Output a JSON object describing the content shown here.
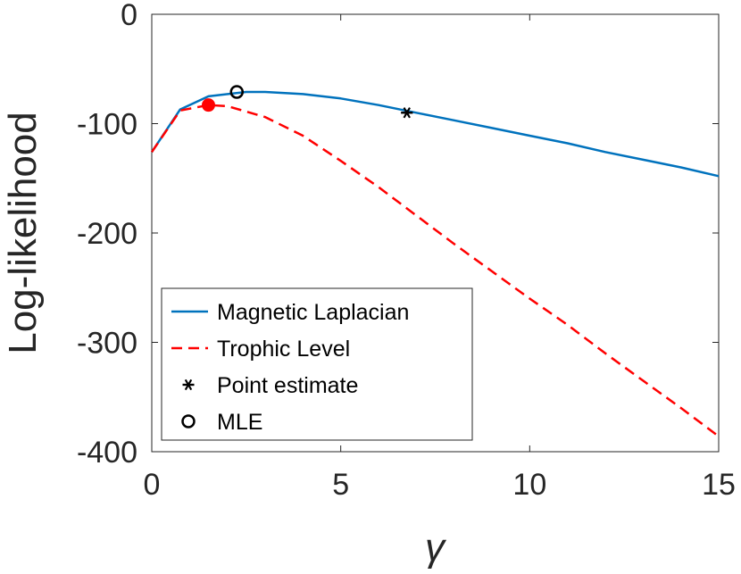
{
  "chart_data": {
    "type": "line",
    "xlabel": "γ",
    "ylabel": "Log-likelihood",
    "xlim": [
      0,
      15
    ],
    "ylim": [
      -400,
      0
    ],
    "xticks": [
      0,
      5,
      10,
      15
    ],
    "yticks": [
      0,
      -100,
      -200,
      -300,
      -400
    ],
    "xtick_labels": [
      "0",
      "5",
      "10",
      "15"
    ],
    "ytick_labels": [
      "0",
      "-100",
      "-200",
      "-300",
      "-400"
    ],
    "grid": false,
    "legend_position": "bottom-left",
    "series": [
      {
        "name": "Magnetic Laplacian",
        "style": "solid",
        "color": "#0072BD",
        "x": [
          0,
          0.75,
          1.5,
          2.5,
          3.0,
          4.0,
          5.0,
          6.0,
          7.0,
          8.0,
          9.0,
          10.0,
          11.0,
          12.0,
          13.0,
          14.0,
          15.0
        ],
        "y": [
          -126,
          -87,
          -75,
          -71,
          -71,
          -73,
          -77,
          -83,
          -90,
          -97,
          -104,
          -111,
          -118,
          -126,
          -133,
          -140,
          -148
        ]
      },
      {
        "name": "Trophic Level",
        "style": "dashed",
        "color": "#FF0000",
        "x": [
          0,
          0.75,
          1.5,
          2.0,
          3.0,
          4.0,
          5.0,
          6.0,
          7.0,
          8.0,
          9.0,
          10.0,
          11.0,
          12.0,
          13.0,
          14.0,
          15.0
        ],
        "y": [
          -126,
          -88,
          -83,
          -84,
          -94,
          -111,
          -134,
          -158,
          -184,
          -210,
          -235,
          -260,
          -284,
          -310,
          -335,
          -360,
          -386
        ]
      }
    ],
    "markers": [
      {
        "name": "Point estimate",
        "symbol": "asterisk",
        "color": "#000000",
        "x": 6.75,
        "y": -90
      },
      {
        "name": "MLE",
        "symbol": "circle",
        "color": "#000000",
        "x": 2.25,
        "y": -71
      },
      {
        "name": "Trophic Level MLE",
        "symbol": "circle",
        "color": "#FF0000",
        "filled": true,
        "x": 1.5,
        "y": -83
      }
    ],
    "legend": [
      {
        "label": "Magnetic Laplacian",
        "symbol": "solid-line",
        "color": "#0072BD"
      },
      {
        "label": "Trophic Level",
        "symbol": "dashed-line",
        "color": "#FF0000"
      },
      {
        "label": "Point estimate",
        "symbol": "asterisk",
        "color": "#000000"
      },
      {
        "label": "MLE",
        "symbol": "circle",
        "color": "#000000"
      }
    ]
  }
}
